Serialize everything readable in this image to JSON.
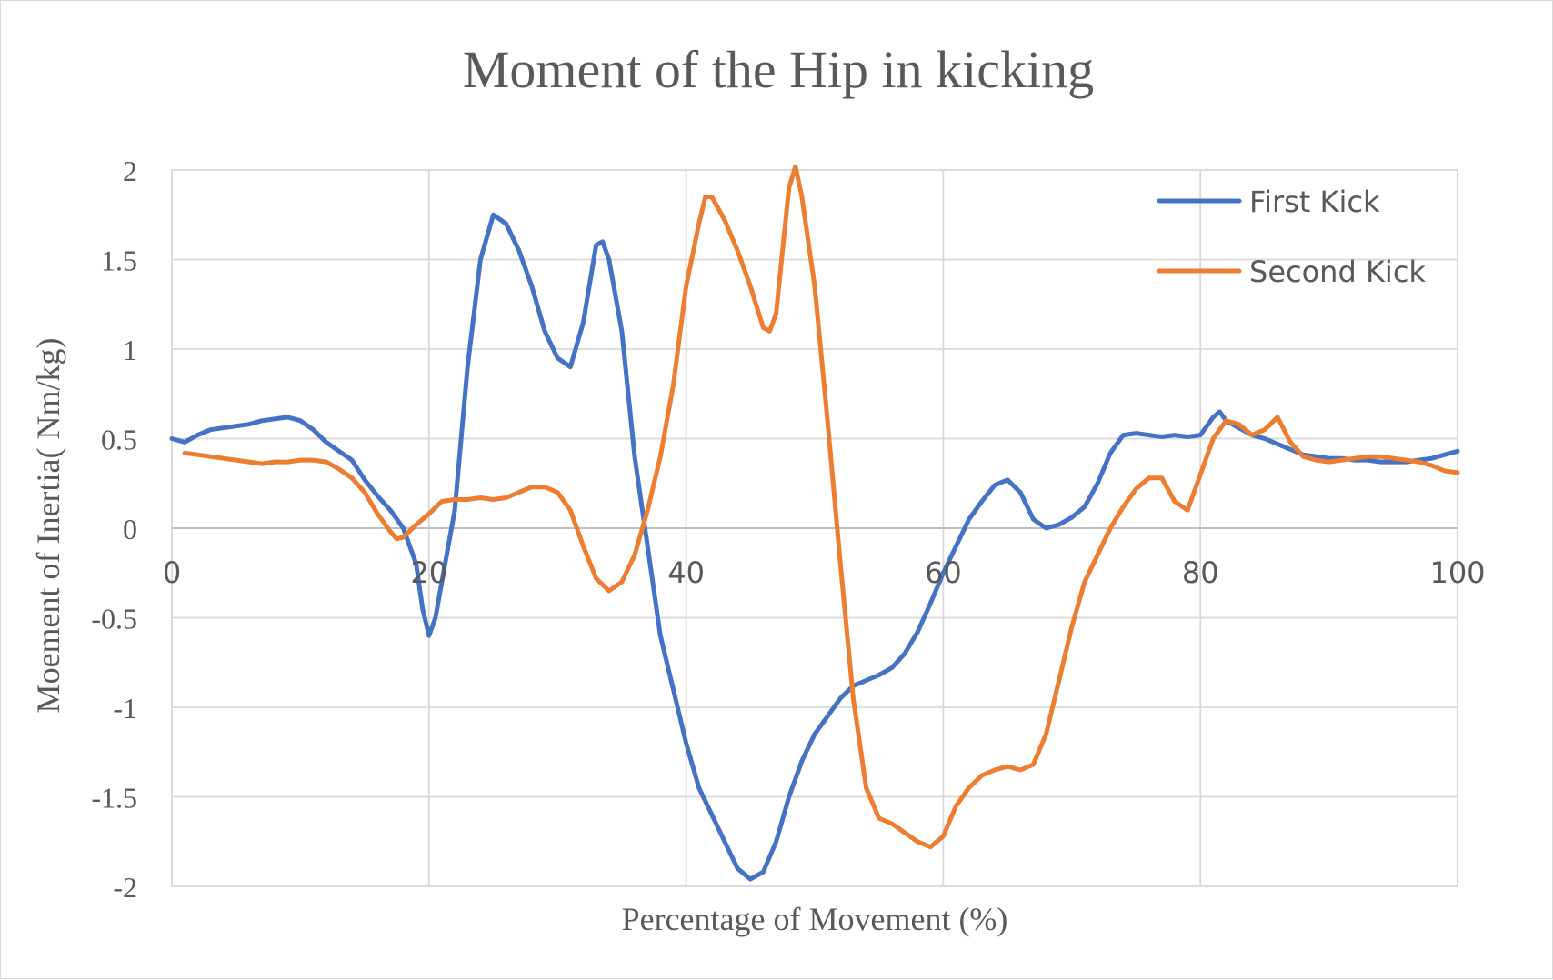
{
  "chart_data": {
    "type": "line",
    "title": "Moment of the Hip in kicking",
    "xlabel": "Percentage of Movement (%)",
    "ylabel": "Moement of Inertia( Nm/kg)",
    "xlim": [
      0,
      100
    ],
    "ylim": [
      -2,
      2
    ],
    "xticks": [
      "0",
      "20",
      "40",
      "60",
      "80",
      "100"
    ],
    "yticks": [
      "2",
      "1.5",
      "1",
      "0.5",
      "0",
      "-0.5",
      "-1",
      "-1.5",
      "-2"
    ],
    "grid": true,
    "legend_position": "top-right",
    "series": [
      {
        "name": "First Kick",
        "color": "#4472c4",
        "points": [
          [
            0,
            0.5
          ],
          [
            1,
            0.48
          ],
          [
            2,
            0.52
          ],
          [
            3,
            0.55
          ],
          [
            4,
            0.56
          ],
          [
            5,
            0.57
          ],
          [
            6,
            0.58
          ],
          [
            7,
            0.6
          ],
          [
            8,
            0.61
          ],
          [
            9,
            0.62
          ],
          [
            10,
            0.6
          ],
          [
            11,
            0.55
          ],
          [
            12,
            0.48
          ],
          [
            13,
            0.43
          ],
          [
            14,
            0.38
          ],
          [
            15,
            0.27
          ],
          [
            16,
            0.18
          ],
          [
            17,
            0.1
          ],
          [
            18,
            0.0
          ],
          [
            19,
            -0.2
          ],
          [
            19.5,
            -0.45
          ],
          [
            20,
            -0.6
          ],
          [
            20.5,
            -0.5
          ],
          [
            21,
            -0.3
          ],
          [
            22,
            0.1
          ],
          [
            23,
            0.9
          ],
          [
            24,
            1.5
          ],
          [
            25,
            1.75
          ],
          [
            26,
            1.7
          ],
          [
            27,
            1.55
          ],
          [
            28,
            1.35
          ],
          [
            29,
            1.1
          ],
          [
            30,
            0.95
          ],
          [
            31,
            0.9
          ],
          [
            32,
            1.15
          ],
          [
            33,
            1.58
          ],
          [
            33.5,
            1.6
          ],
          [
            34,
            1.5
          ],
          [
            35,
            1.1
          ],
          [
            36,
            0.4
          ],
          [
            37,
            -0.1
          ],
          [
            38,
            -0.6
          ],
          [
            39,
            -0.9
          ],
          [
            40,
            -1.2
          ],
          [
            41,
            -1.45
          ],
          [
            42,
            -1.6
          ],
          [
            43,
            -1.75
          ],
          [
            44,
            -1.9
          ],
          [
            45,
            -1.96
          ],
          [
            46,
            -1.92
          ],
          [
            47,
            -1.75
          ],
          [
            48,
            -1.5
          ],
          [
            49,
            -1.3
          ],
          [
            50,
            -1.15
          ],
          [
            51,
            -1.05
          ],
          [
            52,
            -0.95
          ],
          [
            53,
            -0.88
          ],
          [
            54,
            -0.85
          ],
          [
            55,
            -0.82
          ],
          [
            56,
            -0.78
          ],
          [
            57,
            -0.7
          ],
          [
            58,
            -0.58
          ],
          [
            59,
            -0.42
          ],
          [
            60,
            -0.25
          ],
          [
            61,
            -0.1
          ],
          [
            62,
            0.05
          ],
          [
            63,
            0.15
          ],
          [
            64,
            0.24
          ],
          [
            65,
            0.27
          ],
          [
            66,
            0.2
          ],
          [
            67,
            0.05
          ],
          [
            68,
            0.0
          ],
          [
            69,
            0.02
          ],
          [
            70,
            0.06
          ],
          [
            71,
            0.12
          ],
          [
            72,
            0.25
          ],
          [
            73,
            0.42
          ],
          [
            74,
            0.52
          ],
          [
            75,
            0.53
          ],
          [
            76,
            0.52
          ],
          [
            77,
            0.51
          ],
          [
            78,
            0.52
          ],
          [
            79,
            0.51
          ],
          [
            80,
            0.52
          ],
          [
            81,
            0.62
          ],
          [
            81.5,
            0.65
          ],
          [
            82,
            0.6
          ],
          [
            83,
            0.56
          ],
          [
            84,
            0.52
          ],
          [
            85,
            0.5
          ],
          [
            86,
            0.47
          ],
          [
            87,
            0.44
          ],
          [
            88,
            0.41
          ],
          [
            89,
            0.4
          ],
          [
            90,
            0.39
          ],
          [
            91,
            0.39
          ],
          [
            92,
            0.38
          ],
          [
            93,
            0.38
          ],
          [
            94,
            0.37
          ],
          [
            95,
            0.37
          ],
          [
            96,
            0.37
          ],
          [
            97,
            0.38
          ],
          [
            98,
            0.39
          ],
          [
            99,
            0.41
          ],
          [
            100,
            0.43
          ]
        ]
      },
      {
        "name": "Second Kick",
        "color": "#ed7d31",
        "points": [
          [
            1,
            0.42
          ],
          [
            2,
            0.41
          ],
          [
            3,
            0.4
          ],
          [
            4,
            0.39
          ],
          [
            5,
            0.38
          ],
          [
            6,
            0.37
          ],
          [
            7,
            0.36
          ],
          [
            8,
            0.37
          ],
          [
            9,
            0.37
          ],
          [
            10,
            0.38
          ],
          [
            11,
            0.38
          ],
          [
            12,
            0.37
          ],
          [
            13,
            0.33
          ],
          [
            14,
            0.28
          ],
          [
            15,
            0.2
          ],
          [
            16,
            0.08
          ],
          [
            17,
            -0.02
          ],
          [
            17.5,
            -0.06
          ],
          [
            18,
            -0.05
          ],
          [
            19,
            0.02
          ],
          [
            20,
            0.08
          ],
          [
            21,
            0.15
          ],
          [
            22,
            0.16
          ],
          [
            23,
            0.16
          ],
          [
            24,
            0.17
          ],
          [
            25,
            0.16
          ],
          [
            26,
            0.17
          ],
          [
            27,
            0.2
          ],
          [
            28,
            0.23
          ],
          [
            29,
            0.23
          ],
          [
            30,
            0.2
          ],
          [
            31,
            0.1
          ],
          [
            32,
            -0.1
          ],
          [
            33,
            -0.28
          ],
          [
            34,
            -0.35
          ],
          [
            35,
            -0.3
          ],
          [
            36,
            -0.15
          ],
          [
            37,
            0.1
          ],
          [
            38,
            0.4
          ],
          [
            39,
            0.8
          ],
          [
            40,
            1.35
          ],
          [
            41,
            1.7
          ],
          [
            41.5,
            1.85
          ],
          [
            42,
            1.85
          ],
          [
            43,
            1.72
          ],
          [
            44,
            1.55
          ],
          [
            45,
            1.35
          ],
          [
            46,
            1.12
          ],
          [
            46.5,
            1.1
          ],
          [
            47,
            1.2
          ],
          [
            47.5,
            1.55
          ],
          [
            48,
            1.9
          ],
          [
            48.5,
            2.02
          ],
          [
            49,
            1.85
          ],
          [
            50,
            1.35
          ],
          [
            51,
            0.6
          ],
          [
            52,
            -0.2
          ],
          [
            53,
            -0.95
          ],
          [
            54,
            -1.45
          ],
          [
            55,
            -1.62
          ],
          [
            56,
            -1.65
          ],
          [
            57,
            -1.7
          ],
          [
            58,
            -1.75
          ],
          [
            59,
            -1.78
          ],
          [
            60,
            -1.72
          ],
          [
            61,
            -1.55
          ],
          [
            62,
            -1.45
          ],
          [
            63,
            -1.38
          ],
          [
            64,
            -1.35
          ],
          [
            65,
            -1.33
          ],
          [
            66,
            -1.35
          ],
          [
            67,
            -1.32
          ],
          [
            68,
            -1.15
          ],
          [
            69,
            -0.85
          ],
          [
            70,
            -0.55
          ],
          [
            71,
            -0.3
          ],
          [
            72,
            -0.15
          ],
          [
            73,
            0.0
          ],
          [
            74,
            0.12
          ],
          [
            75,
            0.22
          ],
          [
            76,
            0.28
          ],
          [
            77,
            0.28
          ],
          [
            78,
            0.15
          ],
          [
            79,
            0.1
          ],
          [
            80,
            0.3
          ],
          [
            81,
            0.5
          ],
          [
            82,
            0.6
          ],
          [
            83,
            0.58
          ],
          [
            84,
            0.52
          ],
          [
            85,
            0.55
          ],
          [
            86,
            0.62
          ],
          [
            87,
            0.48
          ],
          [
            88,
            0.4
          ],
          [
            89,
            0.38
          ],
          [
            90,
            0.37
          ],
          [
            91,
            0.38
          ],
          [
            92,
            0.39
          ],
          [
            93,
            0.4
          ],
          [
            94,
            0.4
          ],
          [
            95,
            0.39
          ],
          [
            96,
            0.38
          ],
          [
            97,
            0.37
          ],
          [
            98,
            0.35
          ],
          [
            99,
            0.32
          ],
          [
            100,
            0.31
          ]
        ]
      }
    ]
  }
}
